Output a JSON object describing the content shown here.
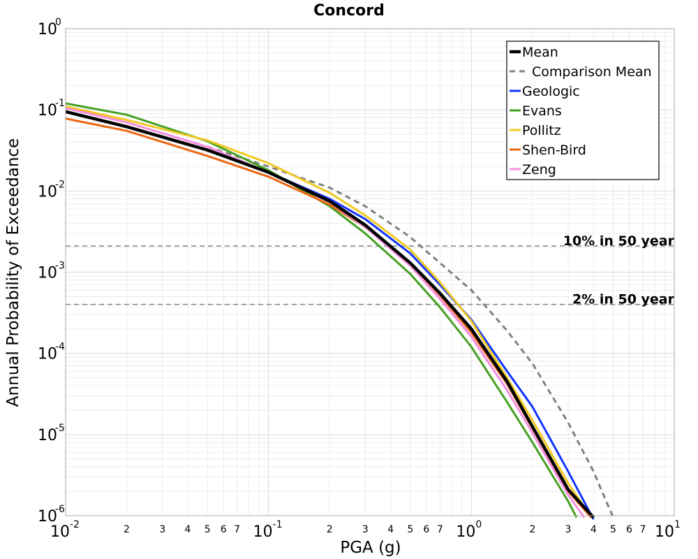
{
  "chart_data": {
    "type": "line",
    "title": "Concord",
    "xlabel": "PGA (g)",
    "ylabel": "Annual Probability of Exceedance",
    "xscale": "log",
    "yscale": "log",
    "xlim": [
      0.01,
      10
    ],
    "ylim": [
      1e-06,
      1
    ],
    "grid": true,
    "legend_position": "top-right",
    "x_major_ticks": [
      {
        "value": 0.01,
        "base": "10",
        "exp": "-2"
      },
      {
        "value": 0.1,
        "base": "10",
        "exp": "-1"
      },
      {
        "value": 1,
        "base": "10",
        "exp": "0"
      },
      {
        "value": 10,
        "base": "10",
        "exp": "1"
      }
    ],
    "x_minor_ticks": [
      {
        "value": 0.02,
        "label": "2"
      },
      {
        "value": 0.03,
        "label": "3"
      },
      {
        "value": 0.04,
        "label": "4"
      },
      {
        "value": 0.05,
        "label": "5"
      },
      {
        "value": 0.06,
        "label": "6"
      },
      {
        "value": 0.07,
        "label": "7"
      },
      {
        "value": 0.2,
        "label": "2"
      },
      {
        "value": 0.3,
        "label": "3"
      },
      {
        "value": 0.4,
        "label": "4"
      },
      {
        "value": 0.5,
        "label": "5"
      },
      {
        "value": 0.6,
        "label": "6"
      },
      {
        "value": 0.7,
        "label": "7"
      },
      {
        "value": 2,
        "label": "2"
      },
      {
        "value": 3,
        "label": "3"
      },
      {
        "value": 4,
        "label": "4"
      },
      {
        "value": 5,
        "label": "5"
      },
      {
        "value": 6,
        "label": "6"
      },
      {
        "value": 7,
        "label": "7"
      }
    ],
    "y_major_ticks": [
      {
        "value": 1,
        "base": "10",
        "exp": "0"
      },
      {
        "value": 0.1,
        "base": "10",
        "exp": "-1"
      },
      {
        "value": 0.01,
        "base": "10",
        "exp": "-2"
      },
      {
        "value": 0.001,
        "base": "10",
        "exp": "-3"
      },
      {
        "value": 0.0001,
        "base": "10",
        "exp": "-4"
      },
      {
        "value": 1e-05,
        "base": "10",
        "exp": "-5"
      },
      {
        "value": 1e-06,
        "base": "10",
        "exp": "-6"
      }
    ],
    "reference_lines": [
      {
        "label": "10% in 50 year",
        "value": 0.0021,
        "color": "#888888"
      },
      {
        "label": "2% in 50 year",
        "value": 0.0004,
        "color": "#888888"
      }
    ],
    "series": [
      {
        "name": "Mean",
        "color": "#000000",
        "dashed": false,
        "bold": true,
        "x": [
          0.01,
          0.02,
          0.05,
          0.1,
          0.2,
          0.3,
          0.5,
          0.7,
          1.0,
          1.5,
          2.0,
          3.0,
          4.0
        ],
        "y": [
          0.095,
          0.062,
          0.032,
          0.017,
          0.0075,
          0.0038,
          0.0013,
          0.00055,
          0.0002,
          4.5e-05,
          1.25e-05,
          2.1e-06,
          9.5e-07
        ]
      },
      {
        "name": "Comparison Mean",
        "color": "#808080",
        "dashed": true,
        "bold": false,
        "x": [
          0.05,
          0.1,
          0.2,
          0.3,
          0.5,
          0.7,
          1.0,
          1.5,
          2.0,
          3.0,
          4.0,
          5.0
        ],
        "y": [
          0.035,
          0.02,
          0.011,
          0.0065,
          0.0027,
          0.0013,
          0.0006,
          0.00019,
          7.5e-05,
          1.4e-05,
          3.5e-06,
          9.5e-07
        ]
      },
      {
        "name": "Geologic",
        "color": "#1133ff",
        "dashed": false,
        "bold": false,
        "x": [
          0.01,
          0.02,
          0.05,
          0.1,
          0.2,
          0.3,
          0.5,
          0.7,
          1.0,
          1.5,
          2.0,
          3.0,
          4.0
        ],
        "y": [
          0.095,
          0.062,
          0.032,
          0.017,
          0.008,
          0.0045,
          0.0017,
          0.0007,
          0.00026,
          6e-05,
          2.2e-05,
          3.5e-06,
          9e-07
        ]
      },
      {
        "name": "Evans",
        "color": "#44a022",
        "dashed": false,
        "bold": false,
        "x": [
          0.01,
          0.02,
          0.05,
          0.1,
          0.2,
          0.3,
          0.5,
          0.7,
          1.0,
          1.5,
          2.0,
          3.0,
          3.3
        ],
        "y": [
          0.12,
          0.087,
          0.041,
          0.018,
          0.0065,
          0.003,
          0.00095,
          0.00037,
          0.00012,
          2.5e-05,
          8e-06,
          1.5e-06,
          9.5e-07
        ]
      },
      {
        "name": "Pollitz",
        "color": "#f0c820",
        "dashed": false,
        "bold": false,
        "x": [
          0.01,
          0.02,
          0.05,
          0.1,
          0.2,
          0.3,
          0.5,
          0.7,
          1.0,
          1.5,
          2.0,
          3.0,
          3.9
        ],
        "y": [
          0.11,
          0.075,
          0.042,
          0.022,
          0.0095,
          0.005,
          0.0019,
          0.00075,
          0.00025,
          5e-05,
          1.5e-05,
          2.5e-06,
          9.5e-07
        ]
      },
      {
        "name": "Shen-Bird",
        "color": "#ee6611",
        "dashed": false,
        "bold": false,
        "x": [
          0.01,
          0.02,
          0.05,
          0.1,
          0.2,
          0.3,
          0.5,
          0.7,
          1.0,
          1.5,
          2.0,
          3.0,
          3.9
        ],
        "y": [
          0.078,
          0.055,
          0.027,
          0.015,
          0.0068,
          0.0036,
          0.0013,
          0.00052,
          0.00018,
          4.2e-05,
          1.2e-05,
          2e-06,
          9.5e-07
        ]
      },
      {
        "name": "Zeng",
        "color": "#f58ee0",
        "dashed": false,
        "bold": false,
        "x": [
          0.01,
          0.02,
          0.05,
          0.1,
          0.2,
          0.3,
          0.5,
          0.7,
          1.0,
          1.5,
          2.0,
          3.0,
          3.6
        ],
        "y": [
          0.105,
          0.07,
          0.035,
          0.017,
          0.0073,
          0.0036,
          0.0012,
          0.00047,
          0.00016,
          3.5e-05,
          1.05e-05,
          1.8e-06,
          9.5e-07
        ]
      }
    ]
  }
}
